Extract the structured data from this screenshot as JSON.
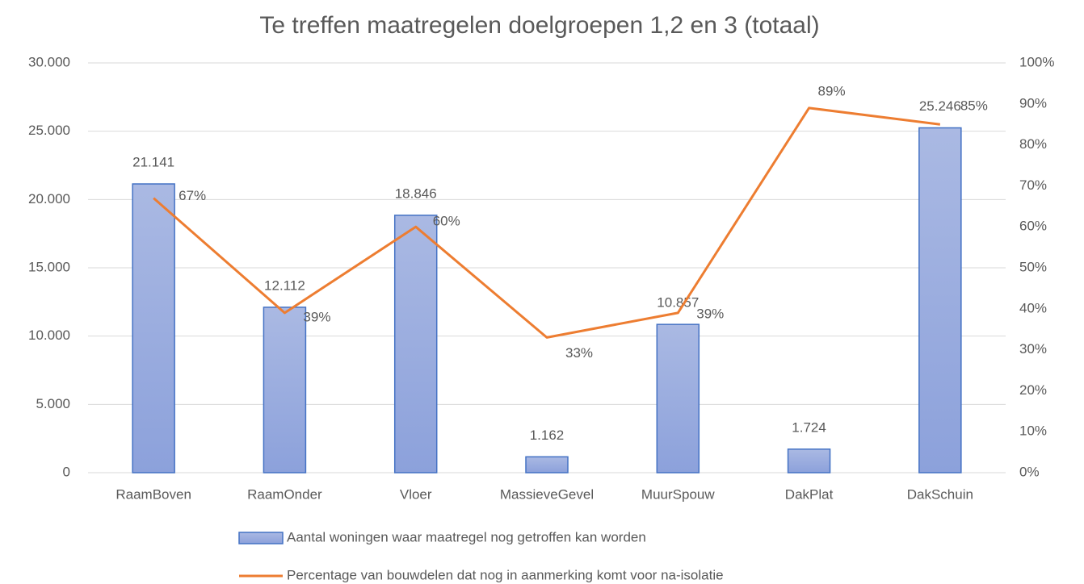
{
  "chart_data": {
    "type": "bar",
    "title": "Te treffen maatregelen doelgroepen 1,2 en 3 (totaal)",
    "categories": [
      "RaamBoven",
      "RaamOnder",
      "Vloer",
      "MassieveGevel",
      "MuurSpouw",
      "DakPlat",
      "DakSchuin"
    ],
    "series": [
      {
        "name": "Aantal woningen waar maatregel nog getroffen kan worden",
        "type": "bar",
        "color": "#4472c4",
        "values": [
          21141,
          12112,
          18846,
          1162,
          10857,
          1724,
          25246
        ],
        "value_labels": [
          "21.141",
          "12.112",
          "18.846",
          "1.162",
          "10.857",
          "1.724",
          "25.246"
        ]
      },
      {
        "name": "Percentage van bouwdelen dat nog in aanmerking komt voor na-isolatie",
        "type": "line",
        "axis": "y2",
        "color": "#ed7d31",
        "values": [
          67,
          39,
          60,
          33,
          39,
          89,
          85
        ],
        "value_labels": [
          "67%",
          "39%",
          "60%",
          "33%",
          "39%",
          "89%",
          "85%"
        ]
      }
    ],
    "ylim": [
      0,
      30000
    ],
    "yticks": [
      0,
      {
        "value": 5000,
        "label": "5.000"
      },
      {
        "value": 10000,
        "label": "10.000"
      },
      {
        "value": 15000,
        "label": "15.000"
      },
      {
        "value": 20000,
        "label": "20.000"
      },
      {
        "value": 25000,
        "label": "25.000"
      },
      {
        "value": 30000,
        "label": "30.000"
      }
    ],
    "y2lim": [
      0,
      100
    ],
    "y2ticks": [
      {
        "value": 0,
        "label": "0%"
      },
      {
        "value": 10,
        "label": "10%"
      },
      {
        "value": 20,
        "label": "20%"
      },
      {
        "value": 30,
        "label": "30%"
      },
      {
        "value": 40,
        "label": "40%"
      },
      {
        "value": 50,
        "label": "50%"
      },
      {
        "value": 60,
        "label": "60%"
      },
      {
        "value": 70,
        "label": "70%"
      },
      {
        "value": 80,
        "label": "80%"
      },
      {
        "value": 90,
        "label": "90%"
      },
      {
        "value": 100,
        "label": "100%"
      }
    ],
    "grid": true,
    "legend": "bottom"
  }
}
